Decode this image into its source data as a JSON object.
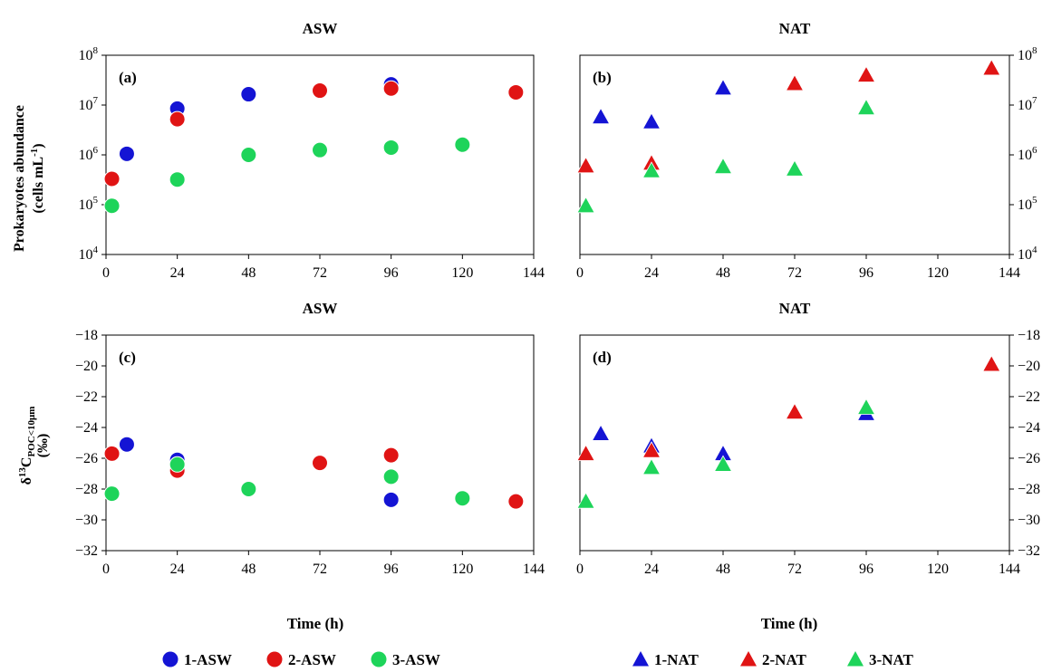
{
  "figure": {
    "x_axis_title": "Time (h)",
    "y_axis_title_top": {
      "line1": "Prokaryotes abundance",
      "line2_main": "(cells mL",
      "line2_sup": "-1",
      "line2_end": ")"
    },
    "y_axis_title_bottom": {
      "delta": "δ",
      "sup": "13",
      "C": "C",
      "sub": "POC<10μm",
      "unit": "(‰)"
    }
  },
  "legend": [
    {
      "label": "1-ASW",
      "marker": "circle",
      "color": "#1414d4"
    },
    {
      "label": "2-ASW",
      "marker": "circle",
      "color": "#e01414"
    },
    {
      "label": "3-ASW",
      "marker": "circle",
      "color": "#1ed45a"
    },
    {
      "label": "1-NAT",
      "marker": "triangle",
      "color": "#1414d4"
    },
    {
      "label": "2-NAT",
      "marker": "triangle",
      "color": "#e01414"
    },
    {
      "label": "3-NAT",
      "marker": "triangle",
      "color": "#1ed45a"
    }
  ],
  "chart_data": [
    {
      "type": "scatter",
      "panel": "(a)",
      "title": "ASW",
      "y_scale": "log",
      "xlim": [
        0,
        144
      ],
      "ylim": [
        10000,
        100000000
      ],
      "x_ticks": [
        "0",
        "24",
        "48",
        "72",
        "96",
        "120",
        "144"
      ],
      "y_ticks": [
        {
          "base": "10",
          "exp": "4"
        },
        {
          "base": "10",
          "exp": "5"
        },
        {
          "base": "10",
          "exp": "6"
        },
        {
          "base": "10",
          "exp": "7"
        },
        {
          "base": "10",
          "exp": "8"
        }
      ],
      "series": [
        {
          "name": "1-ASW",
          "marker": "circle",
          "color": "#1414d4",
          "x": [
            7,
            24,
            48,
            96
          ],
          "y": [
            1050000,
            8500000,
            16500000,
            26000000
          ]
        },
        {
          "name": "2-ASW",
          "marker": "circle",
          "color": "#e01414",
          "x": [
            2,
            24,
            72,
            96,
            138
          ],
          "y": [
            330000,
            5200000,
            19500000,
            21500000,
            18000000
          ]
        },
        {
          "name": "3-ASW",
          "marker": "circle",
          "color": "#1ed45a",
          "x": [
            2,
            24,
            48,
            72,
            96,
            120
          ],
          "y": [
            95000,
            320000,
            1000000,
            1250000,
            1400000,
            1600000
          ]
        }
      ]
    },
    {
      "type": "scatter",
      "panel": "(b)",
      "title": "NAT",
      "y_scale": "log",
      "xlim": [
        0,
        144
      ],
      "ylim": [
        10000,
        100000000
      ],
      "x_ticks": [
        "0",
        "24",
        "48",
        "72",
        "96",
        "120",
        "144"
      ],
      "y_ticks": [
        {
          "base": "10",
          "exp": "4"
        },
        {
          "base": "10",
          "exp": "5"
        },
        {
          "base": "10",
          "exp": "6"
        },
        {
          "base": "10",
          "exp": "7"
        },
        {
          "base": "10",
          "exp": "8"
        }
      ],
      "series": [
        {
          "name": "1-NAT",
          "marker": "triangle",
          "color": "#1414d4",
          "x": [
            7,
            24,
            48
          ],
          "y": [
            5800000,
            4600000,
            22000000
          ]
        },
        {
          "name": "2-NAT",
          "marker": "triangle",
          "color": "#e01414",
          "x": [
            2,
            24,
            72,
            96,
            138
          ],
          "y": [
            600000,
            680000,
            27000000,
            40000000,
            55000000
          ]
        },
        {
          "name": "3-NAT",
          "marker": "triangle",
          "color": "#1ed45a",
          "x": [
            2,
            24,
            48,
            72,
            96
          ],
          "y": [
            95000,
            480000,
            580000,
            520000,
            8800000
          ]
        }
      ]
    },
    {
      "type": "scatter",
      "panel": "(c)",
      "title": "ASW",
      "y_scale": "linear",
      "xlim": [
        0,
        144
      ],
      "ylim": [
        -32,
        -18
      ],
      "x_ticks": [
        "0",
        "24",
        "48",
        "72",
        "96",
        "120",
        "144"
      ],
      "y_ticks": [
        "-18",
        "-20",
        "-22",
        "-24",
        "-26",
        "-28",
        "-30",
        "-32"
      ],
      "series": [
        {
          "name": "1-ASW",
          "marker": "circle",
          "color": "#1414d4",
          "x": [
            7,
            24,
            96
          ],
          "y": [
            -25.1,
            -26.1,
            -28.7
          ]
        },
        {
          "name": "2-ASW",
          "marker": "circle",
          "color": "#e01414",
          "x": [
            2,
            24,
            72,
            96,
            138
          ],
          "y": [
            -25.7,
            -26.8,
            -26.3,
            -25.8,
            -28.8
          ]
        },
        {
          "name": "3-ASW",
          "marker": "circle",
          "color": "#1ed45a",
          "x": [
            2,
            24,
            48,
            96,
            120
          ],
          "y": [
            -28.3,
            -26.4,
            -28.0,
            -27.2,
            -28.6
          ]
        }
      ]
    },
    {
      "type": "scatter",
      "panel": "(d)",
      "title": "NAT",
      "y_scale": "linear",
      "xlim": [
        0,
        144
      ],
      "ylim": [
        -32,
        -18
      ],
      "x_ticks": [
        "0",
        "24",
        "48",
        "72",
        "96",
        "120",
        "144"
      ],
      "y_ticks": [
        "-18",
        "-20",
        "-22",
        "-24",
        "-26",
        "-28",
        "-30",
        "-32"
      ],
      "series": [
        {
          "name": "1-NAT",
          "marker": "triangle",
          "color": "#1414d4",
          "x": [
            7,
            24,
            48,
            96
          ],
          "y": [
            -24.4,
            -25.2,
            -25.7,
            -23.1
          ]
        },
        {
          "name": "2-NAT",
          "marker": "triangle",
          "color": "#e01414",
          "x": [
            2,
            24,
            72,
            138
          ],
          "y": [
            -25.7,
            -25.5,
            -23.0,
            -19.9
          ]
        },
        {
          "name": "3-NAT",
          "marker": "triangle",
          "color": "#1ed45a",
          "x": [
            2,
            24,
            48,
            96
          ],
          "y": [
            -28.8,
            -26.6,
            -26.4,
            -22.7
          ]
        }
      ]
    }
  ]
}
